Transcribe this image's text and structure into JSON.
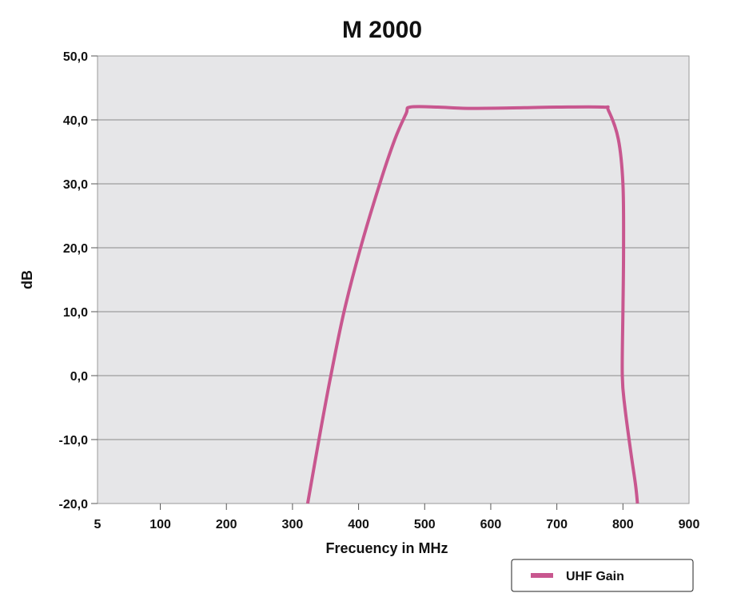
{
  "chart_data": {
    "type": "line",
    "title": "M 2000",
    "xlabel": "Frecuency in MHz",
    "ylabel": "dB",
    "xlim": [
      5,
      900
    ],
    "ylim": [
      -20,
      50
    ],
    "x_ticks": [
      5,
      100,
      200,
      300,
      400,
      500,
      600,
      700,
      800,
      900
    ],
    "x_tick_labels": [
      "5",
      "100",
      "200",
      "300",
      "400",
      "500",
      "600",
      "700",
      "800",
      "900"
    ],
    "y_ticks": [
      -20,
      -10,
      0,
      10,
      20,
      30,
      40,
      50
    ],
    "y_tick_labels": [
      "-20,0",
      "-10,0",
      "0,0",
      "10,0",
      "20,0",
      "30,0",
      "40,0",
      "50,0"
    ],
    "grid": true,
    "legend_position": "bottom-right",
    "colors": {
      "plot_bg": "#e6e6e8",
      "grid": "#8a8a8a",
      "series": "#c8578f"
    },
    "series": [
      {
        "name": "UHF Gain",
        "points": [
          [
            323,
            -20
          ],
          [
            340,
            -10
          ],
          [
            358,
            0
          ],
          [
            378,
            10
          ],
          [
            403,
            20
          ],
          [
            432,
            30
          ],
          [
            455,
            37
          ],
          [
            472,
            41
          ],
          [
            478,
            42
          ],
          [
            520,
            42
          ],
          [
            565,
            41.8
          ],
          [
            650,
            41.9
          ],
          [
            700,
            42
          ],
          [
            770,
            42
          ],
          [
            778,
            41.5
          ],
          [
            793,
            37
          ],
          [
            800,
            30
          ],
          [
            801,
            20
          ],
          [
            800,
            10
          ],
          [
            799,
            0
          ],
          [
            803,
            -5
          ],
          [
            812,
            -12
          ],
          [
            819,
            -17
          ],
          [
            822,
            -20
          ]
        ]
      }
    ]
  }
}
